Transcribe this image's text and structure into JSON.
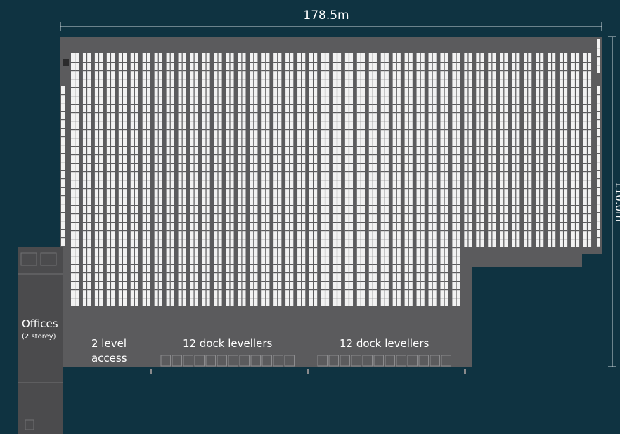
{
  "dimensions": {
    "width_label": "178.5m",
    "height_label": "110.0m"
  },
  "zones": {
    "offices_label": "Offices",
    "offices_sub": "(2 storey)",
    "access_line1": "2 level",
    "access_line2": "access",
    "dock_left": "12 dock levellers",
    "dock_right": "12 dock levellers"
  },
  "colors": {
    "background": "#0f3341",
    "building": "#5b5b5d",
    "offices": "#4b4b4d",
    "racking": "#f2f2f2",
    "label": "#ffffff"
  }
}
